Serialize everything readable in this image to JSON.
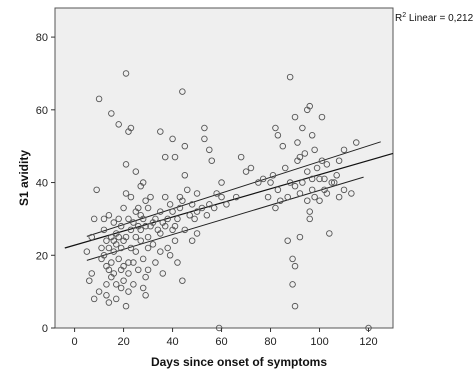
{
  "chart_data": {
    "type": "scatter",
    "xlabel": "Days since onset of symptoms",
    "ylabel": "S1 avidity",
    "xlim": [
      -8,
      130
    ],
    "ylim": [
      0,
      88
    ],
    "x_ticks": [
      0,
      20,
      40,
      60,
      80,
      100,
      120
    ],
    "y_ticks": [
      0,
      20,
      40,
      60,
      80
    ],
    "annotation": {
      "r2_prefix": "R",
      "r2_sup": "2",
      "r2_text": " Linear = 0,212"
    },
    "fit_line": {
      "x": [
        -4,
        130
      ],
      "y": [
        22.0,
        48.0
      ]
    },
    "ci_upper": {
      "x": [
        5,
        125
      ],
      "y": [
        25.2,
        51.2
      ]
    },
    "ci_lower": {
      "x": [
        5,
        118
      ],
      "y": [
        18.6,
        41.5
      ]
    },
    "grid": false,
    "background": "#efefef",
    "marker_color": "#555555",
    "points": [
      [
        5,
        21
      ],
      [
        6,
        13
      ],
      [
        7,
        15
      ],
      [
        7,
        25
      ],
      [
        8,
        8
      ],
      [
        8,
        30
      ],
      [
        9,
        38
      ],
      [
        10,
        63
      ],
      [
        10,
        10
      ],
      [
        11,
        22
      ],
      [
        11,
        19
      ],
      [
        12,
        27
      ],
      [
        12,
        30
      ],
      [
        12,
        20
      ],
      [
        13,
        9
      ],
      [
        13,
        24
      ],
      [
        13,
        17
      ],
      [
        13,
        12
      ],
      [
        14,
        31
      ],
      [
        14,
        22
      ],
      [
        14,
        16
      ],
      [
        14,
        7
      ],
      [
        15,
        25
      ],
      [
        15,
        18
      ],
      [
        15,
        14
      ],
      [
        15,
        59
      ],
      [
        16,
        29
      ],
      [
        16,
        21
      ],
      [
        16,
        15
      ],
      [
        16,
        24
      ],
      [
        17,
        26
      ],
      [
        17,
        23
      ],
      [
        17,
        8
      ],
      [
        17,
        12
      ],
      [
        18,
        25
      ],
      [
        18,
        19
      ],
      [
        18,
        56
      ],
      [
        18,
        30
      ],
      [
        19,
        28
      ],
      [
        19,
        22
      ],
      [
        19,
        11
      ],
      [
        19,
        16
      ],
      [
        20,
        24
      ],
      [
        20,
        33
      ],
      [
        20,
        13
      ],
      [
        20,
        17
      ],
      [
        21,
        70
      ],
      [
        21,
        25
      ],
      [
        21,
        37
      ],
      [
        21,
        45
      ],
      [
        21,
        6
      ],
      [
        22,
        54
      ],
      [
        22,
        18
      ],
      [
        22,
        15
      ],
      [
        22,
        30
      ],
      [
        22,
        10
      ],
      [
        23,
        55
      ],
      [
        23,
        27
      ],
      [
        23,
        36
      ],
      [
        23,
        22
      ],
      [
        24,
        29
      ],
      [
        24,
        18
      ],
      [
        24,
        12
      ],
      [
        25,
        32
      ],
      [
        25,
        25
      ],
      [
        25,
        21
      ],
      [
        25,
        43
      ],
      [
        26,
        28
      ],
      [
        26,
        33
      ],
      [
        26,
        16
      ],
      [
        27,
        39
      ],
      [
        27,
        31
      ],
      [
        27,
        24
      ],
      [
        27,
        27
      ],
      [
        28,
        40
      ],
      [
        28,
        30
      ],
      [
        28,
        19
      ],
      [
        28,
        11
      ],
      [
        29,
        35
      ],
      [
        29,
        28
      ],
      [
        29,
        14
      ],
      [
        29,
        9
      ],
      [
        30,
        33
      ],
      [
        30,
        25
      ],
      [
        30,
        22
      ],
      [
        30,
        16
      ],
      [
        31,
        36
      ],
      [
        31,
        28
      ],
      [
        32,
        29
      ],
      [
        32,
        23
      ],
      [
        33,
        30
      ],
      [
        33,
        18
      ],
      [
        34,
        27
      ],
      [
        35,
        54
      ],
      [
        35,
        32
      ],
      [
        35,
        26
      ],
      [
        35,
        21
      ],
      [
        36,
        15
      ],
      [
        36,
        29
      ],
      [
        37,
        36
      ],
      [
        37,
        47
      ],
      [
        37,
        28
      ],
      [
        38,
        30
      ],
      [
        38,
        22
      ],
      [
        39,
        20
      ],
      [
        39,
        34
      ],
      [
        40,
        32
      ],
      [
        40,
        52
      ],
      [
        40,
        27
      ],
      [
        41,
        28
      ],
      [
        41,
        24
      ],
      [
        41,
        47
      ],
      [
        42,
        30
      ],
      [
        42,
        18
      ],
      [
        43,
        33
      ],
      [
        43,
        36
      ],
      [
        44,
        65
      ],
      [
        44,
        35
      ],
      [
        44,
        13
      ],
      [
        45,
        27
      ],
      [
        45,
        50
      ],
      [
        45,
        42
      ],
      [
        46,
        38
      ],
      [
        47,
        31
      ],
      [
        48,
        34
      ],
      [
        48,
        24
      ],
      [
        49,
        30
      ],
      [
        50,
        37
      ],
      [
        50,
        26
      ],
      [
        50,
        32
      ],
      [
        52,
        33
      ],
      [
        53,
        52
      ],
      [
        53,
        55
      ],
      [
        54,
        31
      ],
      [
        55,
        49
      ],
      [
        55,
        34
      ],
      [
        56,
        46
      ],
      [
        57,
        33
      ],
      [
        58,
        37
      ],
      [
        59,
        0
      ],
      [
        60,
        40
      ],
      [
        60,
        36
      ],
      [
        62,
        34
      ],
      [
        66,
        36
      ],
      [
        68,
        47
      ],
      [
        70,
        43
      ],
      [
        72,
        44
      ],
      [
        75,
        40
      ],
      [
        77,
        41
      ],
      [
        79,
        36
      ],
      [
        80,
        40
      ],
      [
        81,
        42
      ],
      [
        82,
        55
      ],
      [
        82,
        33
      ],
      [
        83,
        38
      ],
      [
        83,
        53
      ],
      [
        84,
        35
      ],
      [
        85,
        50
      ],
      [
        86,
        44
      ],
      [
        87,
        24
      ],
      [
        87,
        36
      ],
      [
        88,
        69
      ],
      [
        88,
        40
      ],
      [
        89,
        12
      ],
      [
        89,
        19
      ],
      [
        90,
        6
      ],
      [
        90,
        39
      ],
      [
        90,
        58
      ],
      [
        90,
        17
      ],
      [
        91,
        51
      ],
      [
        91,
        46
      ],
      [
        92,
        47
      ],
      [
        92,
        25
      ],
      [
        92,
        37
      ],
      [
        93,
        55
      ],
      [
        93,
        40
      ],
      [
        94,
        48
      ],
      [
        95,
        43
      ],
      [
        95,
        35
      ],
      [
        95,
        60
      ],
      [
        96,
        61
      ],
      [
        96,
        30
      ],
      [
        96,
        32
      ],
      [
        97,
        38
      ],
      [
        97,
        41
      ],
      [
        97,
        53
      ],
      [
        98,
        49
      ],
      [
        98,
        36
      ],
      [
        99,
        44
      ],
      [
        100,
        35
      ],
      [
        100,
        41
      ],
      [
        101,
        58
      ],
      [
        101,
        46
      ],
      [
        102,
        41
      ],
      [
        102,
        38
      ],
      [
        103,
        45
      ],
      [
        103,
        37
      ],
      [
        104,
        26
      ],
      [
        105,
        40
      ],
      [
        106,
        40
      ],
      [
        107,
        42
      ],
      [
        108,
        46
      ],
      [
        108,
        36
      ],
      [
        110,
        49
      ],
      [
        110,
        38
      ],
      [
        113,
        37
      ],
      [
        115,
        51
      ],
      [
        120,
        0
      ]
    ]
  }
}
